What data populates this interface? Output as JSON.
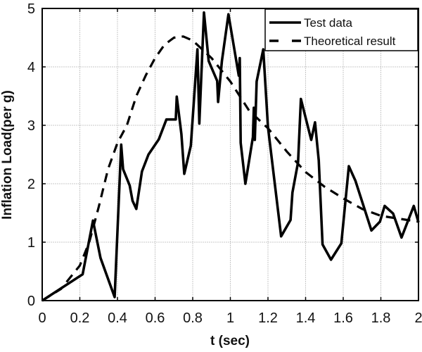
{
  "chart_data": {
    "type": "line",
    "title": "",
    "xlabel": "t (sec)",
    "ylabel": "Inflation Load(per g)",
    "xlim": [
      0,
      2
    ],
    "ylim": [
      0,
      5
    ],
    "xticks": [
      0,
      0.2,
      0.4,
      0.6,
      0.8,
      1,
      1.2,
      1.4,
      1.6,
      1.8,
      2
    ],
    "xtick_labels": [
      "0",
      "0.2",
      "0.4",
      "0.6",
      "0.8",
      "1",
      "1.2",
      "1.4",
      "1.6",
      "1.8",
      "2"
    ],
    "yticks": [
      0,
      1,
      2,
      3,
      4,
      5
    ],
    "ytick_labels": [
      "0",
      "1",
      "2",
      "3",
      "4",
      "5"
    ],
    "grid": true,
    "legend_position": "upper right",
    "series": [
      {
        "name": "Test data",
        "style": "solid",
        "color": "#000000",
        "x": [
          0,
          0.215,
          0.27,
          0.31,
          0.385,
          0.42,
          0.43,
          0.465,
          0.48,
          0.5,
          0.53,
          0.565,
          0.62,
          0.66,
          0.71,
          0.715,
          0.74,
          0.755,
          0.79,
          0.825,
          0.835,
          0.86,
          0.885,
          0.93,
          0.935,
          0.955,
          0.99,
          1.045,
          1.05,
          1.055,
          1.08,
          1.12,
          1.125,
          1.13,
          1.14,
          1.175,
          1.2,
          1.27,
          1.32,
          1.33,
          1.36,
          1.375,
          1.43,
          1.45,
          1.47,
          1.49,
          1.535,
          1.59,
          1.63,
          1.665,
          1.75,
          1.795,
          1.82,
          1.865,
          1.91,
          1.975,
          2.0
        ],
        "y": [
          0,
          0.45,
          1.37,
          0.73,
          0.06,
          2.67,
          2.25,
          1.97,
          1.71,
          1.57,
          2.21,
          2.5,
          2.76,
          3.1,
          3.1,
          3.49,
          2.85,
          2.17,
          2.65,
          4.3,
          3.03,
          4.93,
          4.1,
          3.76,
          3.4,
          4.1,
          4.9,
          3.85,
          4.15,
          2.7,
          2.0,
          2.8,
          3.3,
          2.75,
          3.75,
          4.3,
          2.97,
          1.1,
          1.38,
          1.85,
          2.37,
          3.45,
          2.75,
          3.05,
          2.4,
          0.96,
          0.7,
          0.98,
          2.3,
          2.05,
          1.2,
          1.35,
          1.62,
          1.49,
          1.08,
          1.62,
          1.34
        ]
      },
      {
        "name": "Theoretical result",
        "style": "dashed",
        "color": "#000000",
        "x": [
          0,
          0.1,
          0.2,
          0.25,
          0.3,
          0.35,
          0.4,
          0.45,
          0.5,
          0.55,
          0.6,
          0.65,
          0.7,
          0.75,
          0.8,
          0.9,
          1.0,
          1.1,
          1.2,
          1.3,
          1.4,
          1.5,
          1.6,
          1.7,
          1.8,
          1.9,
          2.0
        ],
        "y": [
          0,
          0.2,
          0.6,
          1.0,
          1.6,
          2.25,
          2.7,
          3.0,
          3.5,
          3.85,
          4.15,
          4.38,
          4.5,
          4.52,
          4.45,
          4.15,
          3.75,
          3.25,
          2.95,
          2.55,
          2.2,
          1.95,
          1.75,
          1.57,
          1.45,
          1.4,
          1.35
        ]
      }
    ]
  },
  "legend": {
    "items": [
      {
        "label": "Test data",
        "style": "solid"
      },
      {
        "label": "Theoretical result",
        "style": "dashed"
      }
    ]
  },
  "colors": {
    "line": "#000000",
    "grid": "#c8c8c8",
    "axis": "#000000",
    "background": "#ffffff"
  }
}
